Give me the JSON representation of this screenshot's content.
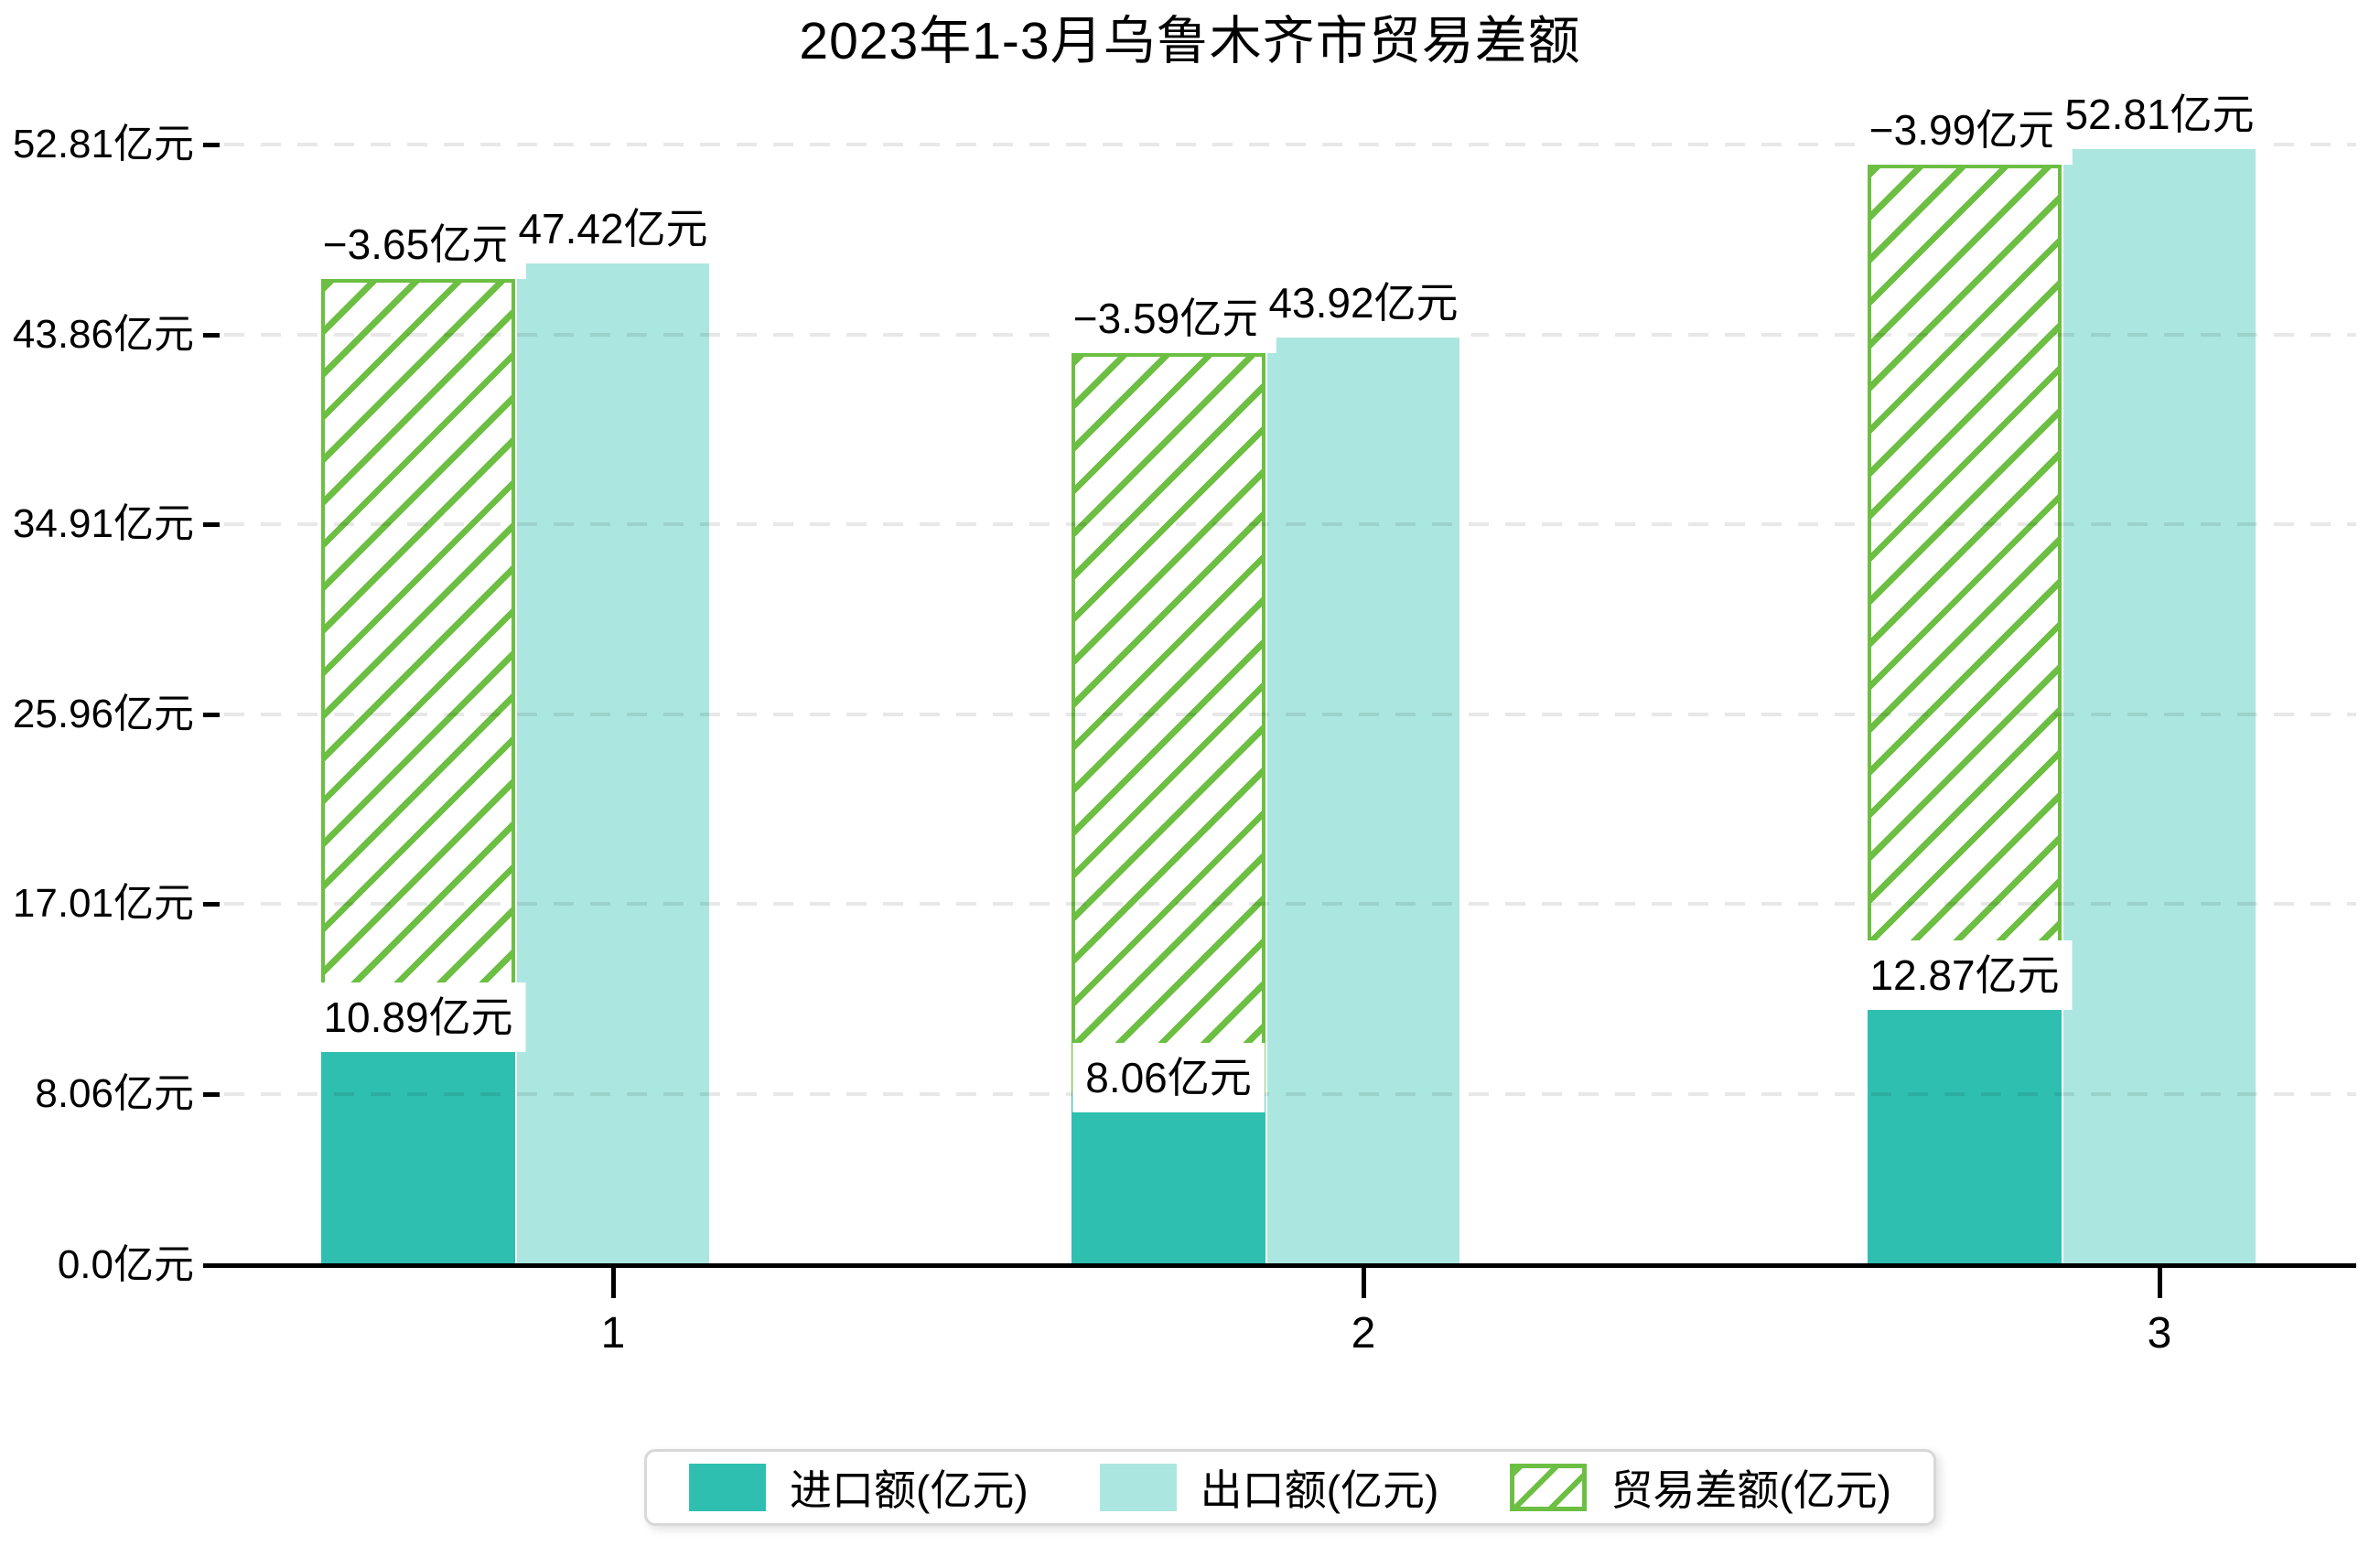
{
  "page": {
    "background": "#ffffff"
  },
  "header": {
    "title": "2023年1-3月乌鲁木齐市贸易差额"
  },
  "chart_data": {
    "type": "bar",
    "title": "2023年1-3月乌鲁木齐市贸易差额",
    "categories": [
      "1",
      "2",
      "3"
    ],
    "unit": "亿元",
    "series": [
      {
        "name": "进口额(亿元)",
        "values": [
          10.89,
          8.06,
          12.87
        ],
        "labels": [
          "10.89亿元",
          "8.06亿元",
          "12.87亿元"
        ],
        "color": "#2fbfb1",
        "style": "solid"
      },
      {
        "name": "出口额(亿元)",
        "values": [
          47.42,
          43.92,
          52.81
        ],
        "labels": [
          "47.42亿元",
          "43.92亿元",
          "52.81亿元"
        ],
        "color": "#abe7e0",
        "style": "solid"
      },
      {
        "name": "贸易差额(亿元)",
        "values": [
          -3.65,
          -3.59,
          -3.99
        ],
        "labels": [
          "−3.65亿元",
          "−3.59亿元",
          "−3.99亿元"
        ],
        "color": "#6cbf42",
        "style": "hatched",
        "render_note": "hatched bar drawn spanning from the import value up to just below the export value in each month"
      }
    ],
    "y_ticks": [
      {
        "value": 0,
        "label": "0.0亿元"
      },
      {
        "value": 8.06,
        "label": "8.06亿元"
      },
      {
        "value": 17.01,
        "label": "17.01亿元"
      },
      {
        "value": 25.96,
        "label": "25.96亿元"
      },
      {
        "value": 34.91,
        "label": "34.91亿元"
      },
      {
        "value": 43.86,
        "label": "43.86亿元"
      },
      {
        "value": 52.81,
        "label": "52.81亿元"
      }
    ],
    "ylim": [
      0,
      52.81
    ],
    "grid": "horizontal-dashed",
    "legend_position": "bottom-center",
    "colors": {
      "grid": "rgba(0,0,0,0.09)",
      "axis": "#000000",
      "text": "#000000"
    }
  }
}
